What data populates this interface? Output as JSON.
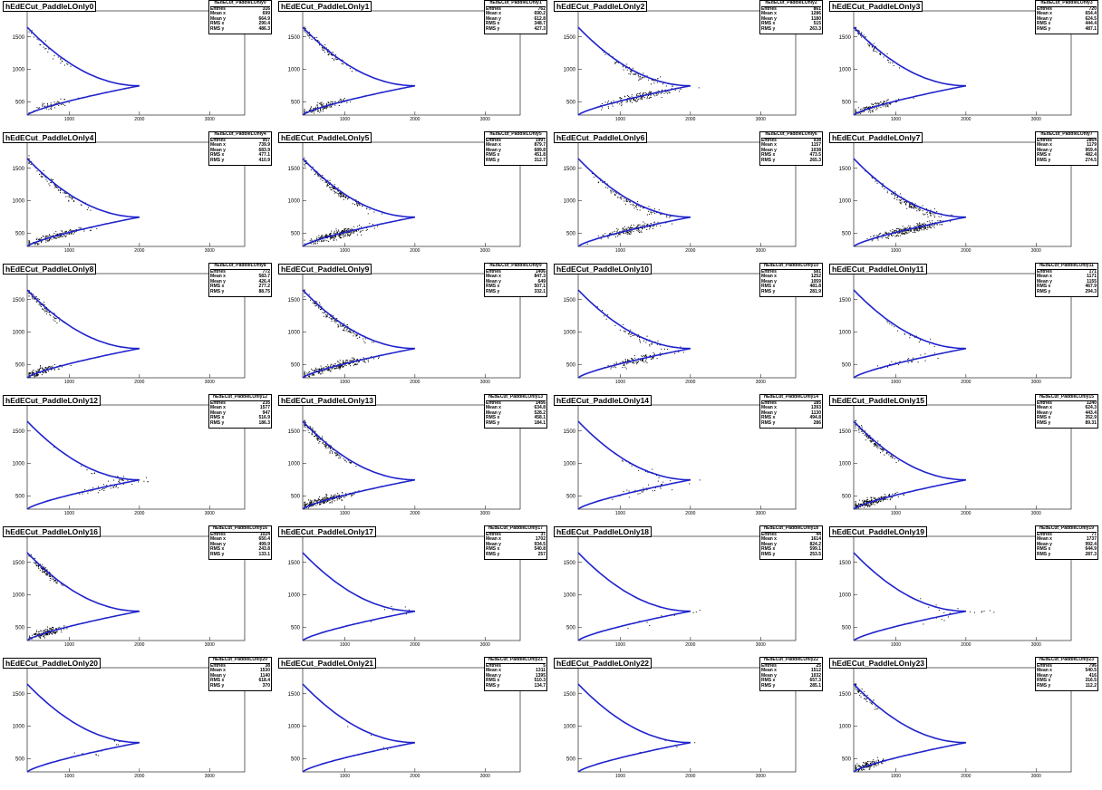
{
  "figure": {
    "style": {
      "curve_color": "#1f23cc",
      "point_color": "#000000",
      "axis_color": "#000000"
    },
    "stat_labels": [
      "Entries",
      "Mean x",
      "Mean y",
      "RMS x",
      "RMS y"
    ]
  },
  "chart_data": [
    {
      "type": "scatter",
      "title": "hEdECut_PaddleLOnly0",
      "xlim": [
        400,
        3500
      ],
      "ylim": [
        300,
        1900
      ],
      "xticks": [
        1000,
        2000,
        3000
      ],
      "yticks": [
        500,
        1000,
        1500
      ],
      "stats": {
        "name": "hEdECut_PaddleLOnly0",
        "entries": "316",
        "mean_x": "699",
        "mean_y": "664.9",
        "rms_x": "290.4",
        "rms_y": "486.3"
      }
    },
    {
      "type": "scatter",
      "title": "hEdECut_PaddleLOnly1",
      "xlim": [
        400,
        3500
      ],
      "ylim": [
        300,
        1900
      ],
      "xticks": [
        1000,
        2000,
        3000
      ],
      "yticks": [
        500,
        1000,
        1500
      ],
      "stats": {
        "name": "hEdECut_PaddleLOnly1",
        "entries": "762",
        "mean_x": "690.2",
        "mean_y": "612.8",
        "rms_x": "348.7",
        "rms_y": "427.3"
      }
    },
    {
      "type": "scatter",
      "title": "hEdECut_PaddleLOnly2",
      "xlim": [
        400,
        3500
      ],
      "ylim": [
        300,
        1900
      ],
      "xticks": [
        1000,
        2000,
        3000
      ],
      "yticks": [
        500,
        1000,
        1500
      ],
      "stats": {
        "name": "hEdECut_PaddleLOnly2",
        "entries": "861",
        "mean_x": "1286",
        "mean_y": "1180",
        "rms_x": "515",
        "rms_y": "263.3"
      }
    },
    {
      "type": "scatter",
      "title": "hEdECut_PaddleLOnly3",
      "xlim": [
        400,
        3500
      ],
      "ylim": [
        300,
        1900
      ],
      "xticks": [
        1000,
        2000,
        3000
      ],
      "yticks": [
        500,
        1000,
        1500
      ],
      "stats": {
        "name": "hEdECut_PaddleLOnly3",
        "entries": "720",
        "mean_x": "654.4",
        "mean_y": "624.5",
        "rms_x": "444.4",
        "rms_y": "487.1"
      }
    },
    {
      "type": "scatter",
      "title": "hEdECut_PaddleLOnly4",
      "xlim": [
        400,
        3500
      ],
      "ylim": [
        300,
        1900
      ],
      "xticks": [
        1000,
        2000,
        3000
      ],
      "yticks": [
        500,
        1000,
        1500
      ],
      "stats": {
        "name": "hEdECut_PaddleLOnly4",
        "entries": "957",
        "mean_x": "739.9",
        "mean_y": "683.9",
        "rms_x": "477.1",
        "rms_y": "410.9"
      }
    },
    {
      "type": "scatter",
      "title": "hEdECut_PaddleLOnly5",
      "xlim": [
        400,
        3500
      ],
      "ylim": [
        300,
        1900
      ],
      "xticks": [
        1000,
        2000,
        3000
      ],
      "yticks": [
        500,
        1000,
        1500
      ],
      "stats": {
        "name": "hEdECut_PaddleLOnly5",
        "entries": "1997",
        "mean_x": "879.7",
        "mean_y": "689.8",
        "rms_x": "451.8",
        "rms_y": "312.7"
      }
    },
    {
      "type": "scatter",
      "title": "hEdECut_PaddleLOnly6",
      "xlim": [
        400,
        3500
      ],
      "ylim": [
        300,
        1900
      ],
      "xticks": [
        1000,
        2000,
        3000
      ],
      "yticks": [
        500,
        1000,
        1500
      ],
      "stats": {
        "name": "hEdECut_PaddleLOnly6",
        "entries": "938",
        "mean_x": "1157",
        "mean_y": "1038",
        "rms_x": "473.5",
        "rms_y": "265.3"
      }
    },
    {
      "type": "scatter",
      "title": "hEdECut_PaddleLOnly7",
      "xlim": [
        400,
        3500
      ],
      "ylim": [
        300,
        1900
      ],
      "xticks": [
        1000,
        2000,
        3000
      ],
      "yticks": [
        500,
        1000,
        1500
      ],
      "stats": {
        "name": "hEdECut_PaddleLOnly7",
        "entries": "2864",
        "mean_x": "1179",
        "mean_y": "959.4",
        "rms_x": "482.4",
        "rms_y": "274.5"
      }
    },
    {
      "type": "scatter",
      "title": "hEdECut_PaddleLOnly8",
      "xlim": [
        400,
        3500
      ],
      "ylim": [
        300,
        1900
      ],
      "xticks": [
        1000,
        2000,
        3000
      ],
      "yticks": [
        500,
        1000,
        1500
      ],
      "stats": {
        "name": "hEdECut_PaddleLOnly8",
        "entries": "772",
        "mean_x": "583.7",
        "mean_y": "426.4",
        "rms_x": "277.2",
        "rms_y": "88.75"
      }
    },
    {
      "type": "scatter",
      "title": "hEdECut_PaddleLOnly9",
      "xlim": [
        400,
        3500
      ],
      "ylim": [
        300,
        1900
      ],
      "xticks": [
        1000,
        2000,
        3000
      ],
      "yticks": [
        500,
        1000,
        1500
      ],
      "stats": {
        "name": "hEdECut_PaddleLOnly9",
        "entries": "1406",
        "mean_x": "847.3",
        "mean_y": "649",
        "rms_x": "507.1",
        "rms_y": "332.1"
      }
    },
    {
      "type": "scatter",
      "title": "hEdECut_PaddleLOnly10",
      "xlim": [
        400,
        3500
      ],
      "ylim": [
        300,
        1900
      ],
      "xticks": [
        1000,
        2000,
        3000
      ],
      "yticks": [
        500,
        1000,
        1500
      ],
      "stats": {
        "name": "hEdECut_PaddleLOnly10",
        "entries": "581",
        "mean_x": "1252",
        "mean_y": "1059",
        "rms_x": "481.8",
        "rms_y": "281.9"
      }
    },
    {
      "type": "scatter",
      "title": "hEdECut_PaddleLOnly11",
      "xlim": [
        400,
        3500
      ],
      "ylim": [
        300,
        1900
      ],
      "xticks": [
        1000,
        2000,
        3000
      ],
      "yticks": [
        500,
        1000,
        1500
      ],
      "stats": {
        "name": "hEdECut_PaddleLOnly11",
        "entries": "171",
        "mean_x": "1171",
        "mean_y": "1155",
        "rms_x": "467.9",
        "rms_y": "294.3"
      }
    },
    {
      "type": "scatter",
      "title": "hEdECut_PaddleLOnly12",
      "xlim": [
        400,
        3500
      ],
      "ylim": [
        300,
        1900
      ],
      "xticks": [
        1000,
        2000,
        3000
      ],
      "yticks": [
        500,
        1000,
        1500
      ],
      "stats": {
        "name": "hEdECut_PaddleLOnly12",
        "entries": "235",
        "mean_x": "1577",
        "mean_y": "947",
        "rms_x": "516.9",
        "rms_y": "186.3"
      }
    },
    {
      "type": "scatter",
      "title": "hEdECut_PaddleLOnly13",
      "xlim": [
        400,
        3500
      ],
      "ylim": [
        300,
        1900
      ],
      "xticks": [
        1000,
        2000,
        3000
      ],
      "yticks": [
        500,
        1000,
        1500
      ],
      "stats": {
        "name": "hEdECut_PaddleLOnly13",
        "entries": "1456",
        "mean_x": "634.8",
        "mean_y": "528.2",
        "rms_x": "458.1",
        "rms_y": "184.1"
      }
    },
    {
      "type": "scatter",
      "title": "hEdECut_PaddleLOnly14",
      "xlim": [
        400,
        3500
      ],
      "ylim": [
        300,
        1900
      ],
      "xticks": [
        1000,
        2000,
        3000
      ],
      "yticks": [
        500,
        1000,
        1500
      ],
      "stats": {
        "name": "hEdECut_PaddleLOnly14",
        "entries": "185",
        "mean_x": "1393",
        "mean_y": "1130",
        "rms_x": "494.8",
        "rms_y": "286"
      }
    },
    {
      "type": "scatter",
      "title": "hEdECut_PaddleLOnly15",
      "xlim": [
        400,
        3500
      ],
      "ylim": [
        300,
        1900
      ],
      "xticks": [
        1000,
        2000,
        3000
      ],
      "yticks": [
        500,
        1000,
        1500
      ],
      "stats": {
        "name": "hEdECut_PaddleLOnly15",
        "entries": "1240",
        "mean_x": "624.3",
        "mean_y": "443.4",
        "rms_x": "352.9",
        "rms_y": "89.31"
      }
    },
    {
      "type": "scatter",
      "title": "hEdECut_PaddleLOnly16",
      "xlim": [
        400,
        3500
      ],
      "ylim": [
        300,
        1900
      ],
      "xticks": [
        1000,
        2000,
        3000
      ],
      "yticks": [
        500,
        1000,
        1500
      ],
      "stats": {
        "name": "hEdECut_PaddleLOnly16",
        "entries": "1024",
        "mean_x": "650.4",
        "mean_y": "499.9",
        "rms_x": "243.8",
        "rms_y": "133.1"
      }
    },
    {
      "type": "scatter",
      "title": "hEdECut_PaddleLOnly17",
      "xlim": [
        400,
        3500
      ],
      "ylim": [
        300,
        1900
      ],
      "xticks": [
        1000,
        2000,
        3000
      ],
      "yticks": [
        500,
        1000,
        1500
      ],
      "stats": {
        "name": "hEdECut_PaddleLOnly17",
        "entries": "37",
        "mean_x": "1702",
        "mean_y": "934.5",
        "rms_x": "540.8",
        "rms_y": "257"
      }
    },
    {
      "type": "scatter",
      "title": "hEdECut_PaddleLOnly18",
      "xlim": [
        400,
        3500
      ],
      "ylim": [
        300,
        1900
      ],
      "xticks": [
        1000,
        2000,
        3000
      ],
      "yticks": [
        500,
        1000,
        1500
      ],
      "stats": {
        "name": "hEdECut_PaddleLOnly18",
        "entries": "44",
        "mean_x": "1614",
        "mean_y": "824.2",
        "rms_x": "599.1",
        "rms_y": "253.5"
      }
    },
    {
      "type": "scatter",
      "title": "hEdECut_PaddleLOnly19",
      "xlim": [
        400,
        3500
      ],
      "ylim": [
        300,
        1900
      ],
      "xticks": [
        1000,
        2000,
        3000
      ],
      "yticks": [
        500,
        1000,
        1500
      ],
      "stats": {
        "name": "hEdECut_PaddleLOnly19",
        "entries": "77",
        "mean_x": "1737",
        "mean_y": "992.4",
        "rms_x": "644.9",
        "rms_y": "287.3"
      }
    },
    {
      "type": "scatter",
      "title": "hEdECut_PaddleLOnly20",
      "xlim": [
        400,
        3500
      ],
      "ylim": [
        300,
        1900
      ],
      "xticks": [
        1000,
        2000,
        3000
      ],
      "yticks": [
        500,
        1000,
        1500
      ],
      "stats": {
        "name": "hEdECut_PaddleLOnly20",
        "entries": "38",
        "mean_x": "1530",
        "mean_y": "1140",
        "rms_x": "618.4",
        "rms_y": "370"
      }
    },
    {
      "type": "scatter",
      "title": "hEdECut_PaddleLOnly21",
      "xlim": [
        400,
        3500
      ],
      "ylim": [
        300,
        1900
      ],
      "xticks": [
        1000,
        2000,
        3000
      ],
      "yticks": [
        500,
        1000,
        1500
      ],
      "stats": {
        "name": "hEdECut_PaddleLOnly21",
        "entries": "5",
        "mean_x": "1311",
        "mean_y": "1395",
        "rms_x": "510.3",
        "rms_y": "134.7"
      }
    },
    {
      "type": "scatter",
      "title": "hEdECut_PaddleLOnly22",
      "xlim": [
        400,
        3500
      ],
      "ylim": [
        300,
        1900
      ],
      "xticks": [
        1000,
        2000,
        3000
      ],
      "yticks": [
        500,
        1000,
        1500
      ],
      "stats": {
        "name": "hEdECut_PaddleLOnly22",
        "entries": "25",
        "mean_x": "1512",
        "mean_y": "1032",
        "rms_x": "657.3",
        "rms_y": "285.1"
      }
    },
    {
      "type": "scatter",
      "title": "hEdECut_PaddleLOnly23",
      "xlim": [
        400,
        3500
      ],
      "ylim": [
        300,
        1900
      ],
      "xticks": [
        1000,
        2000,
        3000
      ],
      "yticks": [
        500,
        1000,
        1500
      ],
      "stats": {
        "name": "hEdECut_PaddleLOnly23",
        "entries": "796",
        "mean_x": "540.5",
        "mean_y": "416",
        "rms_x": "316.5",
        "rms_y": "112.2"
      }
    }
  ]
}
